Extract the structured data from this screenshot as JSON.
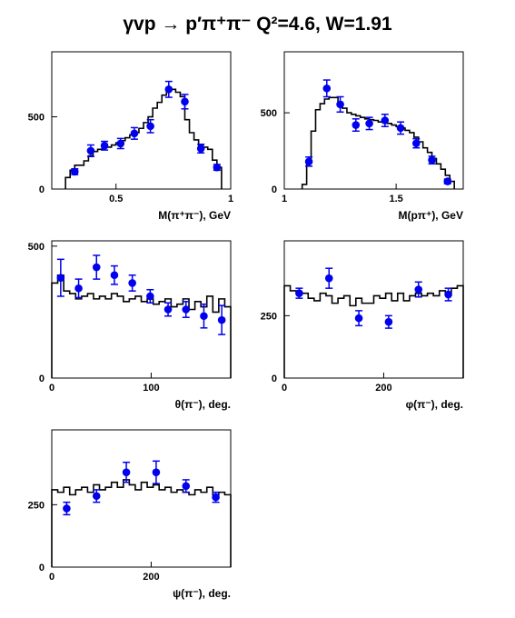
{
  "page": {
    "title": "γvp → p′π⁺π⁻   Q²=4.6, W=1.91"
  },
  "colors": {
    "frame": "#000000",
    "histogram": "#000000",
    "data_points": "#0000ee"
  },
  "chart_data": [
    {
      "id": "m_pipi",
      "type": "histogram+scatter",
      "xlabel": "M(π⁺π⁻), GeV",
      "xlim": [
        0.22,
        1.0
      ],
      "ylim": [
        0,
        950
      ],
      "xticks": [
        {
          "value": 0.5,
          "label": "0.5"
        },
        {
          "value": 1.0,
          "label": "1"
        }
      ],
      "yticks": [
        {
          "value": 0,
          "label": "0"
        },
        {
          "value": 500,
          "label": "500"
        }
      ],
      "histogram": {
        "edges": [
          0.28,
          0.3,
          0.32,
          0.34,
          0.36,
          0.38,
          0.4,
          0.42,
          0.44,
          0.46,
          0.48,
          0.5,
          0.52,
          0.54,
          0.56,
          0.58,
          0.6,
          0.62,
          0.64,
          0.66,
          0.68,
          0.7,
          0.72,
          0.74,
          0.76,
          0.78,
          0.8,
          0.82,
          0.84,
          0.86,
          0.88,
          0.9,
          0.92,
          0.94,
          0.96
        ],
        "values": [
          80,
          130,
          165,
          165,
          195,
          230,
          260,
          275,
          290,
          290,
          305,
          320,
          335,
          355,
          375,
          390,
          420,
          460,
          500,
          560,
          600,
          650,
          690,
          690,
          670,
          640,
          480,
          390,
          340,
          300,
          290,
          275,
          200,
          150
        ]
      },
      "points": [
        {
          "x": 0.32,
          "y": 120,
          "err": 20
        },
        {
          "x": 0.39,
          "y": 265,
          "err": 40
        },
        {
          "x": 0.45,
          "y": 300,
          "err": 30
        },
        {
          "x": 0.52,
          "y": 315,
          "err": 35
        },
        {
          "x": 0.58,
          "y": 385,
          "err": 40
        },
        {
          "x": 0.65,
          "y": 435,
          "err": 45
        },
        {
          "x": 0.73,
          "y": 690,
          "err": 55
        },
        {
          "x": 0.8,
          "y": 605,
          "err": 50
        },
        {
          "x": 0.87,
          "y": 280,
          "err": 30
        },
        {
          "x": 0.94,
          "y": 150,
          "err": 20
        }
      ]
    },
    {
      "id": "m_ppi",
      "type": "histogram+scatter",
      "xlabel": "M(pπ⁺), GeV",
      "xlim": [
        1.0,
        1.8
      ],
      "ylim": [
        0,
        900
      ],
      "xticks": [
        {
          "value": 1.0,
          "label": "1"
        },
        {
          "value": 1.5,
          "label": "1.5"
        }
      ],
      "yticks": [
        {
          "value": 0,
          "label": "0"
        },
        {
          "value": 500,
          "label": "500"
        }
      ],
      "histogram": {
        "edges": [
          1.08,
          1.1,
          1.12,
          1.14,
          1.16,
          1.18,
          1.2,
          1.22,
          1.24,
          1.26,
          1.28,
          1.3,
          1.32,
          1.34,
          1.36,
          1.38,
          1.4,
          1.42,
          1.44,
          1.46,
          1.48,
          1.5,
          1.52,
          1.54,
          1.56,
          1.58,
          1.6,
          1.62,
          1.64,
          1.66,
          1.68,
          1.7,
          1.72,
          1.74,
          1.76
        ],
        "values": [
          30,
          180,
          380,
          520,
          560,
          590,
          600,
          600,
          570,
          530,
          500,
          490,
          480,
          470,
          460,
          455,
          450,
          440,
          435,
          430,
          420,
          410,
          400,
          385,
          370,
          340,
          310,
          270,
          240,
          200,
          165,
          130,
          90,
          50
        ]
      },
      "points": [
        {
          "x": 1.11,
          "y": 180,
          "err": 30
        },
        {
          "x": 1.19,
          "y": 660,
          "err": 55
        },
        {
          "x": 1.25,
          "y": 555,
          "err": 50
        },
        {
          "x": 1.32,
          "y": 420,
          "err": 40
        },
        {
          "x": 1.38,
          "y": 430,
          "err": 40
        },
        {
          "x": 1.45,
          "y": 450,
          "err": 40
        },
        {
          "x": 1.52,
          "y": 400,
          "err": 40
        },
        {
          "x": 1.59,
          "y": 300,
          "err": 30
        },
        {
          "x": 1.66,
          "y": 190,
          "err": 25
        },
        {
          "x": 1.73,
          "y": 50,
          "err": 15
        }
      ]
    },
    {
      "id": "theta_pi",
      "type": "histogram+scatter",
      "xlabel": "θ(π⁻), deg.",
      "xlim": [
        0,
        180
      ],
      "ylim": [
        0,
        520
      ],
      "xticks": [
        {
          "value": 0,
          "label": "0"
        },
        {
          "value": 100,
          "label": "100"
        }
      ],
      "yticks": [
        {
          "value": 0,
          "label": "0"
        },
        {
          "value": 500,
          "label": "500"
        }
      ],
      "histogram": {
        "edges": [
          0,
          6,
          12,
          18,
          24,
          30,
          36,
          42,
          48,
          54,
          60,
          66,
          72,
          78,
          84,
          90,
          96,
          102,
          108,
          114,
          120,
          126,
          132,
          138,
          144,
          150,
          156,
          162,
          168,
          174,
          180
        ],
        "values": [
          360,
          390,
          330,
          320,
          300,
          310,
          320,
          300,
          310,
          300,
          320,
          310,
          290,
          300,
          310,
          290,
          300,
          280,
          290,
          300,
          270,
          280,
          300,
          260,
          290,
          270,
          310,
          250,
          300,
          270
        ]
      },
      "points": [
        {
          "x": 9,
          "y": 380,
          "err": 70
        },
        {
          "x": 27,
          "y": 340,
          "err": 35
        },
        {
          "x": 45,
          "y": 420,
          "err": 45
        },
        {
          "x": 63,
          "y": 390,
          "err": 35
        },
        {
          "x": 81,
          "y": 360,
          "err": 30
        },
        {
          "x": 99,
          "y": 310,
          "err": 25
        },
        {
          "x": 117,
          "y": 260,
          "err": 25
        },
        {
          "x": 135,
          "y": 260,
          "err": 30
        },
        {
          "x": 153,
          "y": 235,
          "err": 45
        },
        {
          "x": 171,
          "y": 220,
          "err": 55
        }
      ]
    },
    {
      "id": "phi_pi",
      "type": "histogram+scatter",
      "xlabel": "φ(π⁻), deg.",
      "xlim": [
        0,
        360
      ],
      "ylim": [
        0,
        550
      ],
      "xticks": [
        {
          "value": 0,
          "label": "0"
        },
        {
          "value": 200,
          "label": "200"
        }
      ],
      "yticks": [
        {
          "value": 0,
          "label": "0"
        },
        {
          "value": 250,
          "label": "250"
        }
      ],
      "histogram": {
        "edges": [
          0,
          12,
          24,
          36,
          48,
          60,
          72,
          84,
          96,
          108,
          120,
          132,
          144,
          156,
          168,
          180,
          192,
          204,
          216,
          228,
          240,
          252,
          264,
          276,
          288,
          300,
          312,
          324,
          336,
          348,
          360
        ],
        "values": [
          370,
          350,
          340,
          340,
          320,
          310,
          340,
          330,
          300,
          320,
          330,
          290,
          320,
          300,
          300,
          330,
          320,
          340,
          310,
          340,
          310,
          330,
          340,
          330,
          340,
          330,
          350,
          340,
          360,
          370
        ]
      },
      "points": [
        {
          "x": 30,
          "y": 340,
          "err": 20
        },
        {
          "x": 90,
          "y": 400,
          "err": 40
        },
        {
          "x": 150,
          "y": 240,
          "err": 30
        },
        {
          "x": 210,
          "y": 225,
          "err": 25
        },
        {
          "x": 270,
          "y": 355,
          "err": 30
        },
        {
          "x": 330,
          "y": 335,
          "err": 25
        }
      ]
    },
    {
      "id": "psi_pi",
      "type": "histogram+scatter",
      "xlabel": "ψ(π⁻), deg.",
      "xlim": [
        0,
        360
      ],
      "ylim": [
        0,
        550
      ],
      "xticks": [
        {
          "value": 0,
          "label": "0"
        },
        {
          "value": 200,
          "label": "200"
        }
      ],
      "yticks": [
        {
          "value": 0,
          "label": "0"
        },
        {
          "value": 250,
          "label": "250"
        }
      ],
      "histogram": {
        "edges": [
          0,
          12,
          24,
          36,
          48,
          60,
          72,
          84,
          96,
          108,
          120,
          132,
          144,
          156,
          168,
          180,
          192,
          204,
          216,
          228,
          240,
          252,
          264,
          276,
          288,
          300,
          312,
          324,
          336,
          348,
          360
        ],
        "values": [
          310,
          300,
          320,
          290,
          310,
          320,
          300,
          330,
          310,
          320,
          340,
          320,
          350,
          330,
          310,
          340,
          320,
          330,
          310,
          320,
          300,
          310,
          300,
          290,
          310,
          300,
          320,
          290,
          300,
          290
        ]
      },
      "points": [
        {
          "x": 30,
          "y": 235,
          "err": 25
        },
        {
          "x": 90,
          "y": 285,
          "err": 25
        },
        {
          "x": 150,
          "y": 380,
          "err": 40
        },
        {
          "x": 210,
          "y": 380,
          "err": 45
        },
        {
          "x": 270,
          "y": 325,
          "err": 25
        },
        {
          "x": 330,
          "y": 280,
          "err": 20
        }
      ]
    }
  ]
}
